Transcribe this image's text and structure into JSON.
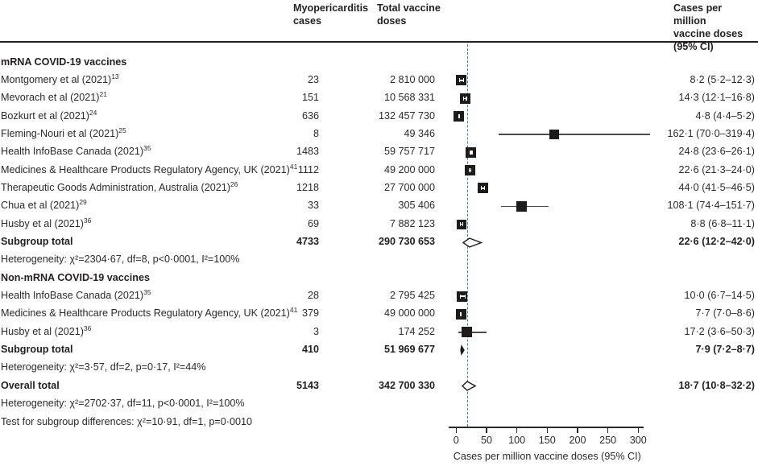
{
  "chart_data": {
    "type": "forest",
    "columns": {
      "cases_header": "Myopericarditis\ncases",
      "doses_header": "Total vaccine\ndoses",
      "estimate_header": "Cases per million\nvaccine doses\n(95% CI)"
    },
    "xlabel": "Cases per million vaccine doses (95% CI)",
    "xticks": [
      0,
      50,
      100,
      150,
      200,
      250,
      300
    ],
    "xlim": [
      0,
      300
    ],
    "reference_line_value": 18.7,
    "reference_line_color": "#4f7d8c",
    "marker_color": "#1d1c1a",
    "rows": [
      {
        "type": "group",
        "label": "mRNA COVID-19 vaccines"
      },
      {
        "type": "study",
        "label": "Montgomery et al (2021)",
        "ref": "13",
        "cases": "23",
        "doses": "2 810 000",
        "est": 8.2,
        "lo": 5.2,
        "hi": 12.3,
        "estimate": "8·2 (5·2–12·3)",
        "sq": 13
      },
      {
        "type": "study",
        "label": "Mevorach et al (2021)",
        "ref": "21",
        "cases": "151",
        "doses": "10 568 331",
        "est": 14.3,
        "lo": 12.1,
        "hi": 16.8,
        "estimate": "14·3 (12·1–16·8)",
        "sq": 13
      },
      {
        "type": "study",
        "label": "Bozkurt et al (2021)",
        "ref": "24",
        "cases": "636",
        "doses": "132 457 730",
        "est": 4.8,
        "lo": 4.4,
        "hi": 5.2,
        "estimate": "4·8 (4·4–5·2)",
        "sq": 13
      },
      {
        "type": "study",
        "label": "Fleming-Nouri et al (2021)",
        "ref": "25",
        "cases": "8",
        "doses": "49 346",
        "est": 162.1,
        "lo": 70.0,
        "hi": 319.4,
        "estimate": "162·1 (70·0–319·4)",
        "sq": 12
      },
      {
        "type": "study",
        "label": "Health InfoBase Canada (2021)",
        "ref": "35",
        "cases": "1483",
        "doses": "59 757 717",
        "est": 24.8,
        "lo": 23.6,
        "hi": 26.1,
        "estimate": "24·8 (23·6–26·1)",
        "sq": 13
      },
      {
        "type": "study",
        "label": "Medicines & Healthcare Products Regulatory Agency, UK (2021)",
        "ref": "41",
        "cases": "1112",
        "doses": "49 200 000",
        "est": 22.6,
        "lo": 21.3,
        "hi": 24.0,
        "estimate": "22·6 (21·3–24·0)",
        "sq": 13
      },
      {
        "type": "study",
        "label": "Therapeutic Goods Administration, Australia (2021)",
        "ref": "26",
        "cases": "1218",
        "doses": "27 700 000",
        "est": 44.0,
        "lo": 41.5,
        "hi": 46.5,
        "estimate": "44·0 (41·5–46·5)",
        "sq": 13
      },
      {
        "type": "study",
        "label": "Chua et al (2021)",
        "ref": "29",
        "cases": "33",
        "doses": "305 406",
        "est": 108.1,
        "lo": 74.4,
        "hi": 151.7,
        "estimate": "108·1 (74·4–151·7)",
        "sq": 13
      },
      {
        "type": "study",
        "label": "Husby et al (2021)",
        "ref": "36",
        "cases": "69",
        "doses": "7 882 123",
        "est": 8.8,
        "lo": 6.8,
        "hi": 11.1,
        "estimate": "8·8 (6·8–11·1)",
        "sq": 12
      },
      {
        "type": "subtotal",
        "label": "Subgroup total",
        "cases": "4733",
        "doses": "290 730 653",
        "est": 22.6,
        "lo": 12.2,
        "hi": 42.0,
        "estimate": "22·6 (12·2–42·0)",
        "diamond": "open"
      },
      {
        "type": "stat",
        "label": "Heterogeneity: χ²=2304·67, df=8, p<0·0001, I²=100%"
      },
      {
        "type": "group",
        "label": "Non-mRNA COVID-19 vaccines"
      },
      {
        "type": "study",
        "label": "Health InfoBase Canada (2021)",
        "ref": "35",
        "cases": "28",
        "doses": "2 795 425",
        "est": 10.0,
        "lo": 6.7,
        "hi": 14.5,
        "estimate": "10·0 (6·7–14·5)",
        "sq": 13
      },
      {
        "type": "study",
        "label": "Medicines & Healthcare Products Regulatory Agency, UK (2021)",
        "ref": "41",
        "cases": "379",
        "doses": "49 000 000",
        "est": 7.7,
        "lo": 7.0,
        "hi": 8.6,
        "estimate": "7·7 (7·0–8·6)",
        "sq": 13
      },
      {
        "type": "study",
        "label": "Husby et al (2021)",
        "ref": "36",
        "cases": "3",
        "doses": "174 252",
        "est": 17.2,
        "lo": 3.6,
        "hi": 50.3,
        "estimate": "17·2 (3·6–50·3)",
        "sq": 13
      },
      {
        "type": "subtotal",
        "label": "Subgroup total",
        "cases": "410",
        "doses": "51 969 677",
        "est": 7.9,
        "lo": 7.2,
        "hi": 8.7,
        "estimate": "7·9 (7·2–8·7)",
        "diamond": "filled"
      },
      {
        "type": "stat",
        "label": "Heterogeneity: χ²=3·57, df=2, p=0·17, I²=44%"
      },
      {
        "type": "subtotal",
        "label": "Overall total",
        "cases": "5143",
        "doses": "342 700 330",
        "est": 18.7,
        "lo": 10.8,
        "hi": 32.2,
        "estimate": "18·7 (10·8–32·2)",
        "diamond": "open"
      },
      {
        "type": "stat",
        "label": "Heterogeneity: χ²=2702·37, df=11, p<0·0001, I²=100%"
      },
      {
        "type": "stat",
        "label": "Test for subgroup differences: χ²=10·91, df=1, p=0·0010"
      }
    ]
  }
}
